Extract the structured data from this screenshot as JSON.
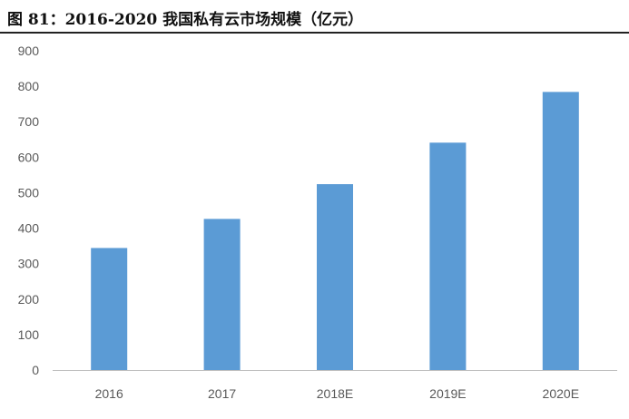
{
  "figure": {
    "title": "图 81：2016-2020 我国私有云市场规模（亿元）"
  },
  "chart_data": {
    "type": "bar",
    "title": "图 81：2016-2020 我国私有云市场规模（亿元）",
    "categories": [
      "2016",
      "2017",
      "2018E",
      "2019E",
      "2020E"
    ],
    "values": [
      344,
      426,
      524,
      641,
      784
    ],
    "ylim": [
      0,
      900
    ],
    "yticks": [
      "0",
      "100",
      "200",
      "300",
      "400",
      "500",
      "600",
      "700",
      "800",
      "900"
    ],
    "xlabel": "",
    "ylabel": "",
    "grid": false,
    "legend": "none",
    "bar_color": "#5B9BD5",
    "axis_color": "#BFBFBF",
    "label_color": "#595959"
  }
}
